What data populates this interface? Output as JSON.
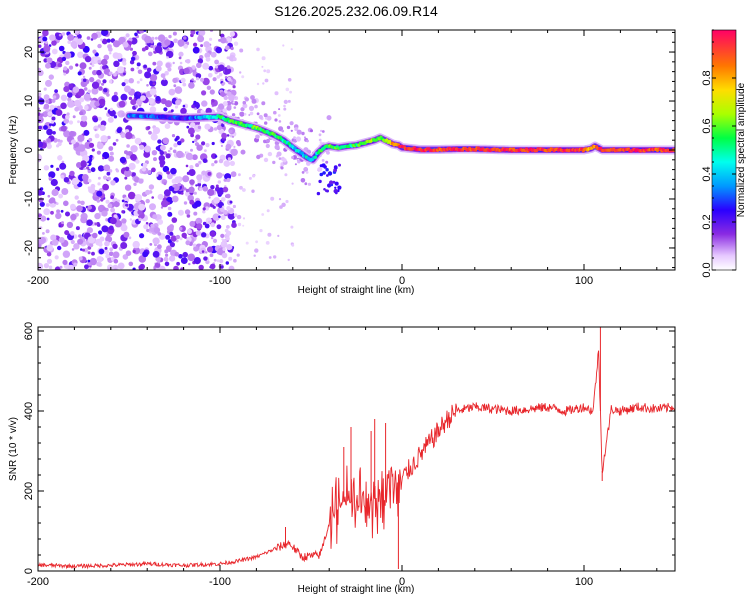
{
  "figure_title": "S126.2025.232.06.09.R14",
  "chart_data": [
    {
      "type": "heatmap",
      "name": "spectrogram",
      "xlabel": "Height of straight line (km)",
      "ylabel": "Frequency (Hz)",
      "xlim": [
        -200,
        150
      ],
      "ylim": [
        -24.5,
        24.5
      ],
      "xticks": [
        -200,
        -100,
        0,
        100
      ],
      "yticks": [
        -20,
        -10,
        0,
        10,
        20
      ],
      "colorbar": {
        "label": "Normalized spectral amplitude",
        "range": [
          0.0,
          1.0
        ],
        "ticks": [
          0.0,
          0.2,
          0.4,
          0.6,
          0.8
        ],
        "tick_labels": [
          "0.0",
          "0.2",
          "0.4",
          "0.6",
          "0.8"
        ]
      },
      "ridge_line": {
        "x": [
          -145,
          -120,
          -100,
          -95,
          -90,
          -85,
          -80,
          -75,
          -70,
          -65,
          -60,
          -55,
          -52,
          -49,
          -46,
          -43,
          -40,
          -35,
          -30,
          -25,
          -20,
          -15,
          -12,
          -8,
          -5,
          -2,
          0,
          10,
          20,
          30,
          40,
          50,
          60,
          70,
          80,
          90,
          100,
          104,
          106,
          110,
          120,
          130,
          140,
          150
        ],
        "y": [
          7,
          6.5,
          6.8,
          6.0,
          5.5,
          5.0,
          4.5,
          3.8,
          3.0,
          2.0,
          0.5,
          -0.8,
          -1.6,
          -2.0,
          -0.5,
          0.5,
          0.8,
          0.5,
          0.8,
          1.0,
          1.5,
          2.0,
          2.5,
          1.8,
          1.2,
          1.0,
          0.5,
          0.1,
          0.1,
          0.2,
          0.2,
          0.1,
          0.0,
          0.0,
          0.0,
          0.0,
          0.0,
          0.3,
          0.8,
          0.0,
          0.0,
          0.0,
          0.0,
          0.0
        ],
        "amplitude": [
          0.3,
          0.25,
          0.5,
          0.55,
          0.6,
          0.5,
          0.6,
          0.5,
          0.55,
          0.5,
          0.45,
          0.4,
          0.45,
          0.45,
          0.5,
          0.55,
          0.6,
          0.55,
          0.5,
          0.55,
          0.6,
          0.65,
          0.55,
          0.7,
          0.8,
          0.9,
          0.95,
          0.95,
          0.9,
          0.95,
          0.9,
          0.95,
          0.9,
          0.95,
          0.9,
          0.95,
          0.9,
          0.75,
          0.85,
          0.95,
          0.9,
          0.95,
          0.9,
          0.9
        ]
      },
      "noise_region": {
        "x_range": [
          -200,
          -100
        ],
        "note": "diffuse low-amplitude scatter across full frequency band"
      }
    },
    {
      "type": "line",
      "name": "snr",
      "xlabel": "Height of straight line (km)",
      "ylabel": "SNR (10 * v/v)",
      "xlim": [
        -200,
        150
      ],
      "ylim": [
        0,
        610
      ],
      "xticks": [
        -200,
        -100,
        0,
        100
      ],
      "yticks": [
        0,
        200,
        400,
        600
      ],
      "series": [
        {
          "name": "SNR",
          "color": "#e8262b",
          "x": [
            -200,
            -180,
            -160,
            -140,
            -120,
            -100,
            -90,
            -80,
            -70,
            -62,
            -55,
            -45,
            -40,
            -35,
            -30,
            -25,
            -20,
            -15,
            -10,
            -5,
            0,
            5,
            10,
            15,
            20,
            25,
            30,
            40,
            50,
            60,
            70,
            80,
            90,
            100,
            105,
            108,
            110,
            115,
            120,
            130,
            140,
            150
          ],
          "values": [
            15,
            12,
            14,
            18,
            14,
            18,
            25,
            35,
            55,
            70,
            35,
            40,
            120,
            160,
            180,
            160,
            170,
            180,
            200,
            210,
            230,
            260,
            290,
            320,
            350,
            380,
            400,
            410,
            405,
            400,
            405,
            410,
            400,
            410,
            400,
            550,
            250,
            405,
            400,
            410,
            405,
            410
          ],
          "spikes": [
            {
              "x": -64,
              "y": 110
            },
            {
              "x": -32,
              "y": 310
            },
            {
              "x": -28,
              "y": 360
            },
            {
              "x": -17,
              "y": 350
            },
            {
              "x": -15,
              "y": 380
            },
            {
              "x": -9,
              "y": 370
            },
            {
              "x": -2,
              "y": 5
            },
            {
              "x": 109,
              "y": 610
            },
            {
              "x": 110,
              "y": 225
            }
          ]
        }
      ]
    }
  ]
}
